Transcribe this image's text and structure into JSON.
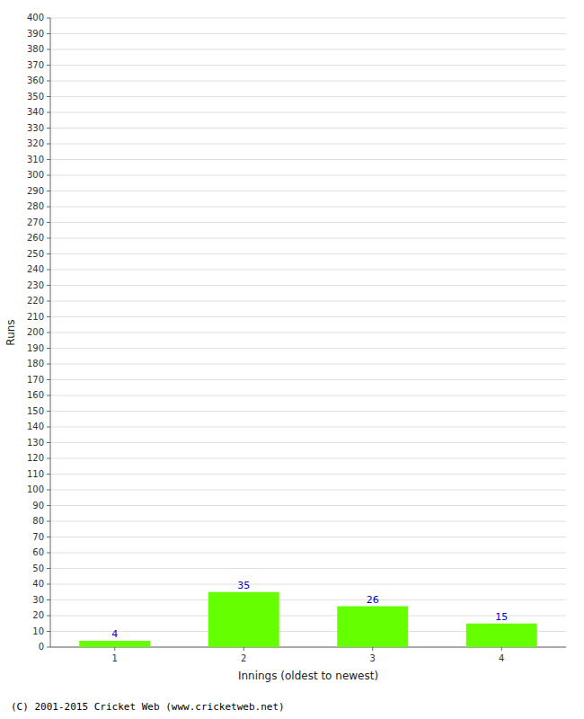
{
  "chart_data": {
    "type": "bar",
    "xlabel": "Innings (oldest to newest)",
    "ylabel": "Runs",
    "categories": [
      1,
      2,
      3,
      4
    ],
    "values": [
      4,
      35,
      26,
      15
    ],
    "color": "#66ff00",
    "ylim": [
      0,
      400
    ],
    "yticks": [
      0,
      10,
      20,
      30,
      40,
      50,
      60,
      70,
      80,
      90,
      100,
      110,
      120,
      130,
      140,
      150,
      160,
      170,
      180,
      190,
      200,
      210,
      220,
      230,
      240,
      250,
      260,
      270,
      280,
      290,
      300,
      310,
      320,
      330,
      340,
      350,
      360,
      370,
      380,
      390,
      400
    ],
    "grid": true,
    "data_labels": true,
    "annotations": [
      "(C) 2001-2015 Cricket Web (www.cricketweb.net)"
    ]
  }
}
